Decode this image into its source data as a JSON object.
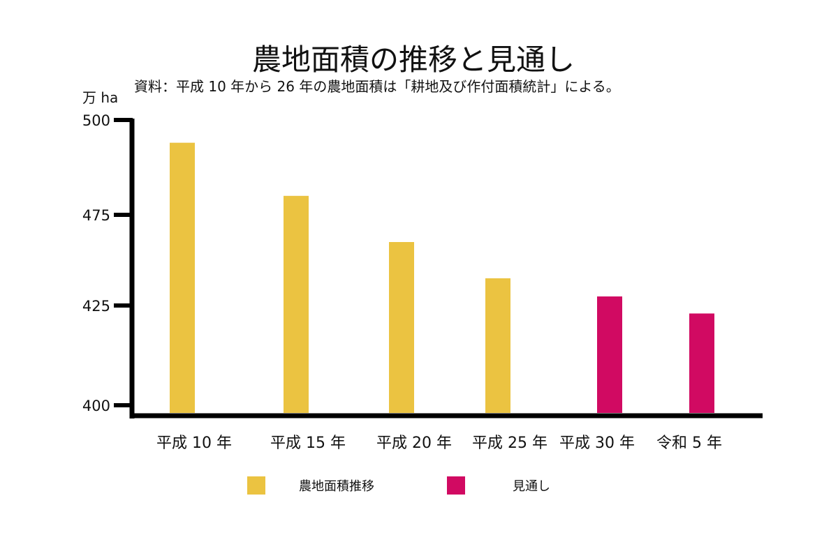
{
  "chart_data": {
    "type": "bar",
    "title": "農地面積の推移と見通し",
    "subtitle": "資料：平成 10 年から 26 年の農地面積は「耕地及び作付面積統計」による。",
    "ylabel": "万 ha",
    "xlabel": "",
    "categories": [
      "平成 10 年",
      "平成 15 年",
      "平成 20 年",
      "平成 25 年",
      "平成 30 年",
      "令和 5 年"
    ],
    "yticks": [
      500,
      475,
      425,
      400
    ],
    "ylim": [
      400,
      500
    ],
    "grid": false,
    "legend_position": "bottom",
    "series": [
      {
        "name": "農地面積推移",
        "color": "#EBC341",
        "values": [
          494,
          480,
          460,
          440,
          null,
          null
        ]
      },
      {
        "name": "見通し",
        "color": "#D10A62",
        "values": [
          null,
          null,
          null,
          null,
          430,
          423
        ]
      }
    ]
  }
}
